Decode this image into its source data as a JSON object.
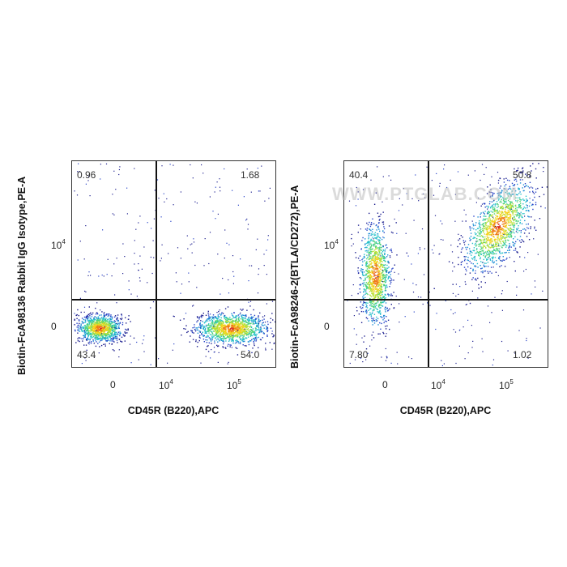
{
  "watermark": "WWW.PTGLAB.COM",
  "palette": [
    "#1d1f8f",
    "#2743c8",
    "#1f8fd6",
    "#27c2c9",
    "#4ed27a",
    "#b7e036",
    "#f6d21d",
    "#ef7a1a",
    "#d62a1e"
  ],
  "chart_data": [
    {
      "type": "scatter",
      "title": "",
      "xlabel": "CD45R (B220),APC",
      "ylabel": "Biotin-FcA98136 Rabbit IgG Isotype,PE-A",
      "x_ticks": [
        {
          "base": "0",
          "exp": ""
        },
        {
          "base": "10",
          "exp": "4"
        },
        {
          "base": "10",
          "exp": "5"
        }
      ],
      "y_ticks": [
        {
          "base": "0",
          "exp": ""
        },
        {
          "base": "10",
          "exp": "4"
        }
      ],
      "quadrants": {
        "UL": "0.96",
        "UR": "1.68",
        "LL": "43.4",
        "LR": "54.0"
      },
      "populations": [
        {
          "name": "",
          "x_center": 0,
          "y_center": 0,
          "density": 0.45
        },
        {
          "name": "",
          "x_center": 100000,
          "y_center": 0,
          "density": 0.55
        }
      ]
    },
    {
      "type": "scatter",
      "title": "",
      "xlabel": "CD45R (B220),APC",
      "ylabel": "Biotin-FcA98246-2(BTLA/CD272),PE-A",
      "x_ticks": [
        {
          "base": "0",
          "exp": ""
        },
        {
          "base": "10",
          "exp": "4"
        },
        {
          "base": "10",
          "exp": "5"
        }
      ],
      "y_ticks": [
        {
          "base": "0",
          "exp": ""
        },
        {
          "base": "10",
          "exp": "4"
        }
      ],
      "quadrants": {
        "UL": "40.4",
        "UR": "50.8",
        "LL": "7.80",
        "LR": "1.02"
      },
      "populations": [
        {
          "name": "",
          "x_center": 0,
          "y_center": 4000,
          "density": 0.45
        },
        {
          "name": "",
          "x_center": 100000,
          "y_center": 30000,
          "density": 0.55
        }
      ]
    }
  ]
}
